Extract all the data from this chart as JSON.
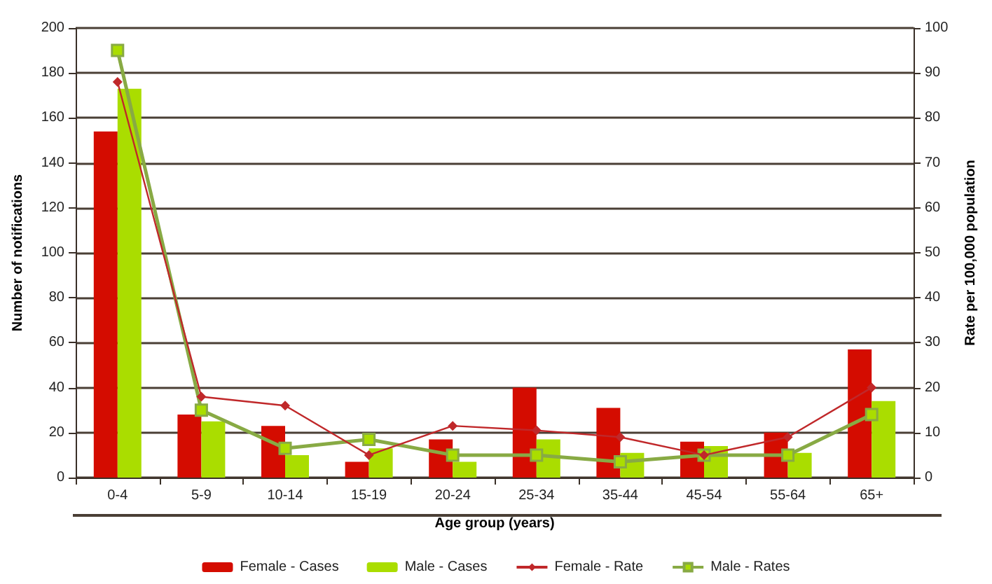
{
  "chart_data": {
    "type": "bar",
    "xlabel": "Age group (years)",
    "ylabel": "Number of notifications",
    "y2label": "Rate per 100,000 population",
    "categories": [
      "0-4",
      "5-9",
      "10-14",
      "15-19",
      "20-24",
      "25-34",
      "35-44",
      "45-54",
      "55-64",
      "65+"
    ],
    "series": [
      {
        "name": "Female - Cases",
        "color": "#d40c00",
        "values": [
          154,
          28,
          23,
          7,
          17,
          40,
          31,
          16,
          20,
          57
        ]
      },
      {
        "name": "Male - Cases",
        "color": "#aadd00",
        "values": [
          173,
          25,
          10,
          13,
          7,
          17,
          11,
          14,
          11,
          34
        ]
      },
      {
        "name": "Female - Rate",
        "type": "line",
        "axis": "y2",
        "color": "#c0282a",
        "marker": "diamond",
        "values": [
          88,
          18,
          16,
          5,
          11.5,
          10.5,
          9,
          5,
          9,
          20
        ]
      },
      {
        "name": "Male - Rates",
        "type": "line",
        "axis": "y2",
        "color": "#88aa44",
        "marker": "square",
        "values": [
          95,
          15,
          6.5,
          8.5,
          5,
          5,
          3.5,
          5,
          5,
          14
        ]
      }
    ],
    "ylim": [
      0,
      200
    ],
    "yticks": [
      0,
      20,
      40,
      60,
      80,
      100,
      120,
      140,
      160,
      180,
      200
    ],
    "y2lim": [
      0,
      100
    ],
    "y2ticks": [
      0,
      10,
      20,
      30,
      40,
      50,
      60,
      70,
      80,
      90,
      100
    ],
    "grid": "y",
    "legend": "bottom"
  }
}
